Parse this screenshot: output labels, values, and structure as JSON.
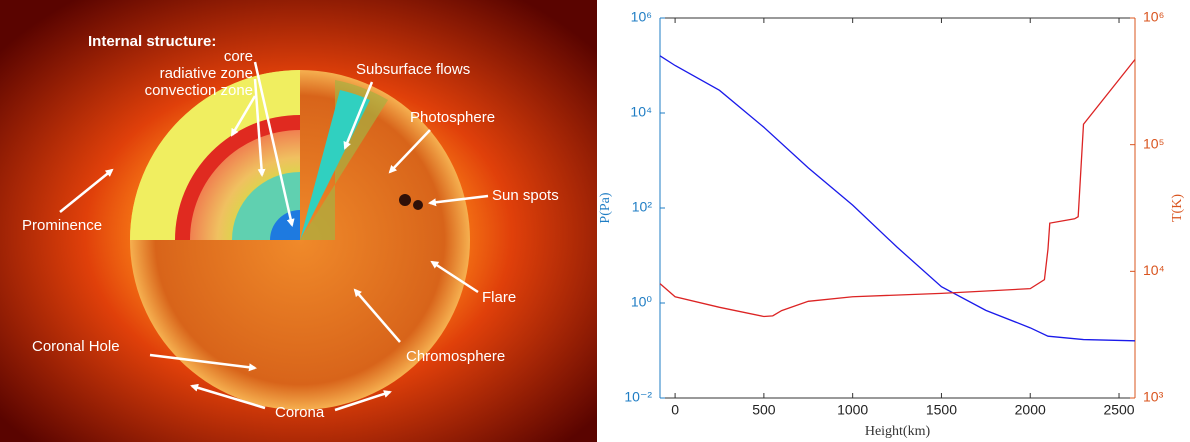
{
  "image": {
    "labels": [
      "Internal structure:",
      "core",
      "radiative zone",
      "convection zone",
      "Subsurface flows",
      "Photosphere",
      "Sun spots",
      "Prominence",
      "Flare",
      "Chromosphere",
      "Coronal Hole",
      "Corona"
    ]
  },
  "chart_data": {
    "type": "line",
    "xlabel": "Height(km)",
    "ylabel": "P(Pa)",
    "y2label": "T(K)",
    "xlim": [
      -85,
      2590
    ],
    "xticks": [
      0,
      500,
      1000,
      1500,
      2000,
      2500
    ],
    "ylim": [
      0.01,
      1000000
    ],
    "ylog": true,
    "yticks": [
      {
        "value": 0.01,
        "label": "10⁻²"
      },
      {
        "value": 1,
        "label": "10⁰"
      },
      {
        "value": 100,
        "label": "10²"
      },
      {
        "value": 10000,
        "label": "10⁴"
      },
      {
        "value": 1000000,
        "label": "10⁶"
      }
    ],
    "y2lim": [
      1000,
      1000000
    ],
    "y2log": true,
    "y2ticks": [
      {
        "value": 1000,
        "label": "10³"
      },
      {
        "value": 10000,
        "label": "10⁴"
      },
      {
        "value": 100000,
        "label": "10⁵"
      },
      {
        "value": 1000000,
        "label": "10⁶"
      }
    ],
    "ycolor": "#1f7dc4",
    "y2color": "#d9541e",
    "series": [
      {
        "color": "#1a1aea",
        "x": [
          -85,
          0,
          250,
          500,
          750,
          1000,
          1250,
          1500,
          1750,
          2000,
          2100,
          2300,
          2590
        ],
        "values": [
          160000,
          100000,
          30000,
          5000,
          700,
          115,
          15,
          2.2,
          0.7,
          0.3,
          0.2,
          0.17,
          0.16
        ]
      },
      {
        "color": "#dc2424",
        "axis": "y2",
        "x": [
          -85,
          0,
          250,
          500,
          550,
          600,
          750,
          1000,
          1500,
          2000,
          2080,
          2100,
          2110,
          2250,
          2270,
          2300,
          2590
        ],
        "values": [
          8000,
          6300,
          5200,
          4400,
          4450,
          4900,
          5800,
          6300,
          6700,
          7300,
          8600,
          15000,
          24000,
          26000,
          27000,
          145000,
          470000
        ]
      }
    ]
  }
}
